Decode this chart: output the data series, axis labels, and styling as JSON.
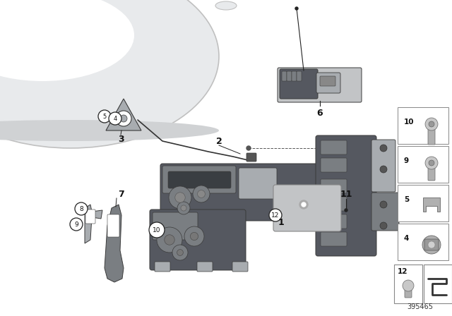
{
  "bg_color": "#ffffff",
  "part_number": "395465",
  "fig_width": 6.4,
  "fig_height": 4.48,
  "dpi": 100,
  "trunk_color": "#e8eaec",
  "trunk_edge": "#c0c0c0",
  "part_color": "#7a7e82",
  "part_edge": "#3a3a3a",
  "part_light": "#a8acb0",
  "part_dark": "#555860",
  "silver": "#c2c4c6",
  "line_color": "#222222",
  "label_color": "#111111",
  "panel_bg": "#ffffff",
  "panel_edge": "#999999"
}
